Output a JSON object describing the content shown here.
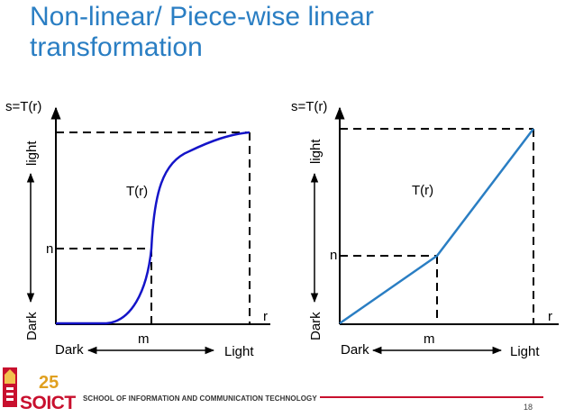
{
  "slide": {
    "title_lines": [
      "Non-linear/ Piece-wise linear",
      "transformation"
    ],
    "page_number": "18"
  },
  "footer": {
    "school_name": "SCHOOL OF INFORMATION AND COMMUNICATION TECHNOLOGY",
    "logo_text": "SOICT",
    "logo_badge": "25",
    "accent_color": "#c8102e"
  },
  "left_plot": {
    "y_axis_label": "s=T(r)",
    "x_axis_label": "r",
    "curve_label": "T(r)",
    "y_top_word": "light",
    "y_bottom_word": "Dark",
    "x_left_word": "Dark",
    "x_right_word": "Light",
    "mark_n": "n",
    "mark_m": "m",
    "curve_color": "#1414c8"
  },
  "right_plot": {
    "y_axis_label": "s=T(r)",
    "x_axis_label": "r",
    "curve_label": "T(r)",
    "y_top_word": "light",
    "y_bottom_word": "Dark",
    "x_left_word": "Dark",
    "x_right_word": "Light",
    "mark_n": "n",
    "mark_m": "m",
    "curve_color": "#2a7ec3"
  },
  "colors": {
    "title": "#2a7ec3",
    "axes": "#000000"
  }
}
